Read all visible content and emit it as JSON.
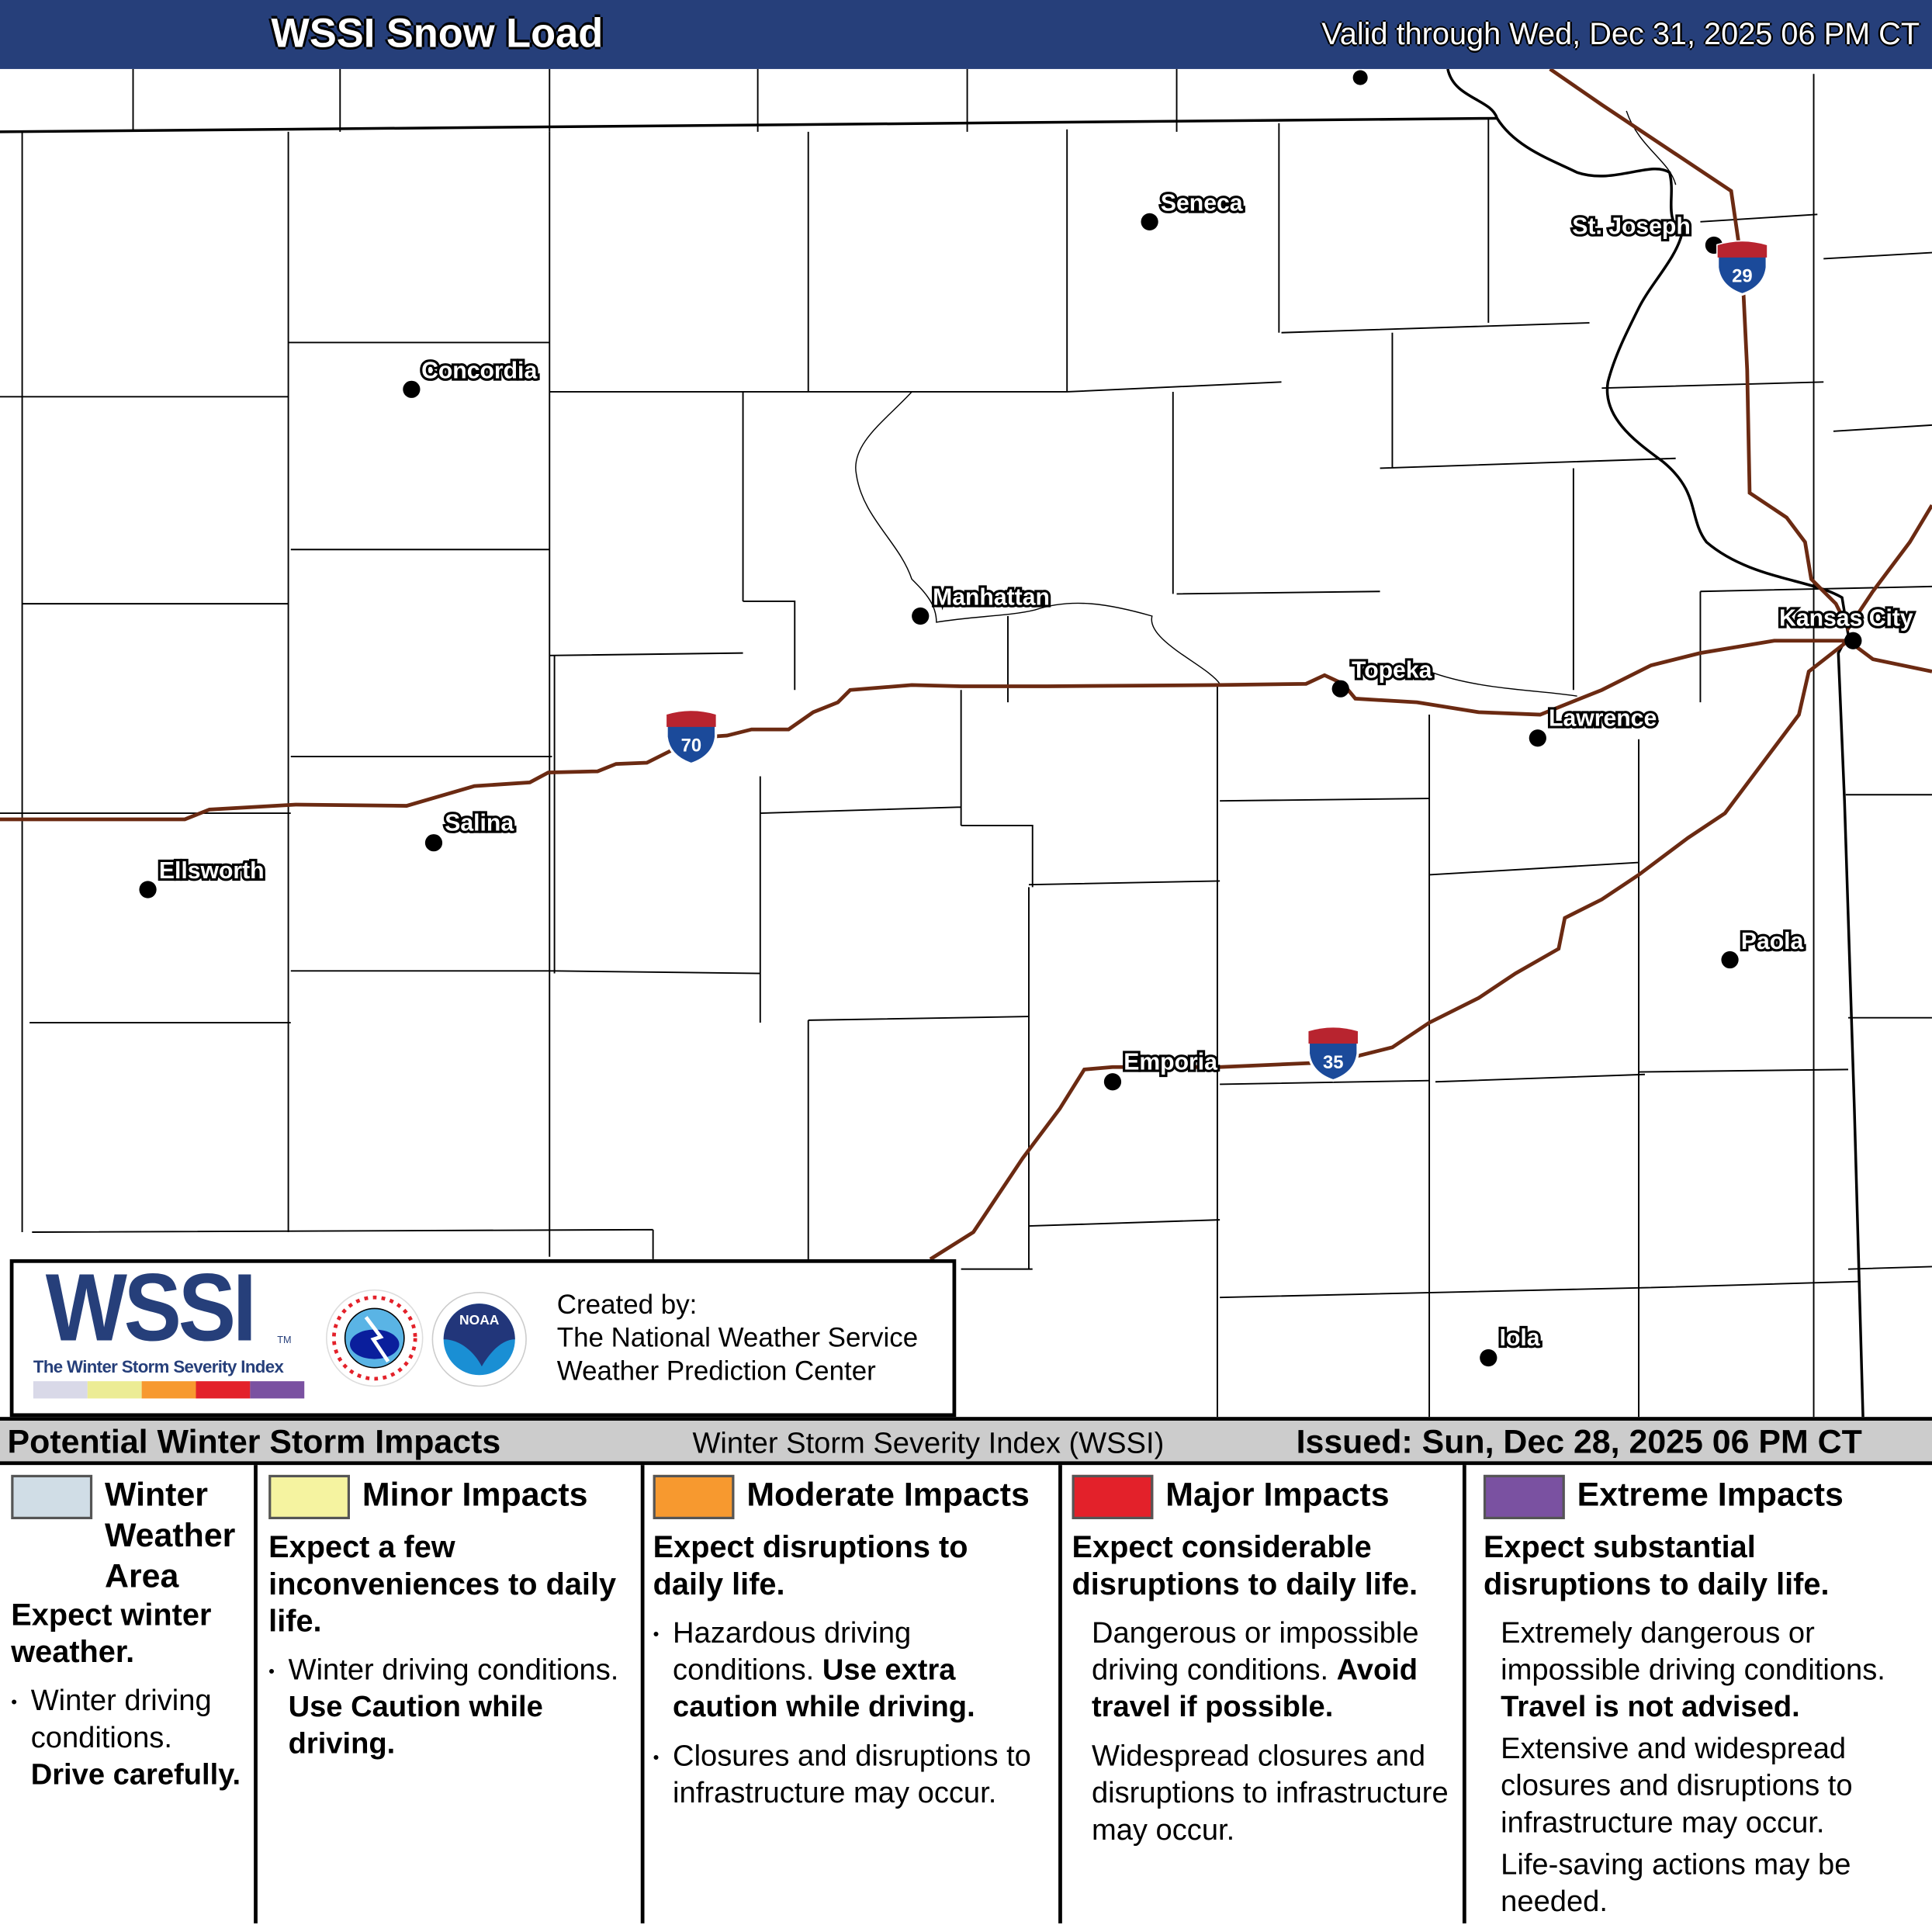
{
  "header": {
    "title": "WSSI Snow Load",
    "valid": "Valid through Wed, Dec 31, 2025 06 PM CT",
    "background": "#263f7a"
  },
  "map": {
    "cities": [
      {
        "name": "Seneca"
      },
      {
        "name": "St. Joseph"
      },
      {
        "name": "Concordia"
      },
      {
        "name": "Manhattan"
      },
      {
        "name": "Kansas City"
      },
      {
        "name": "Topeka"
      },
      {
        "name": "Lawrence"
      },
      {
        "name": "Salina"
      },
      {
        "name": "Ellsworth"
      },
      {
        "name": "Paola"
      },
      {
        "name": "Emporia"
      },
      {
        "name": "Iola"
      }
    ],
    "interstates": [
      {
        "number": "70"
      },
      {
        "number": "35"
      },
      {
        "number": "29"
      }
    ],
    "highway_color": "#6b2a12"
  },
  "logo": {
    "wssi": "WSSI",
    "tm": "TM",
    "subtitle": "The Winter Storm Severity Index",
    "nws_text": "NATIONAL WEATHER SERVICE",
    "noaa_text": "NOAA",
    "created_by": "Created by:",
    "org1": "The National Weather Service",
    "org2": "Weather Prediction Center"
  },
  "bar": {
    "left": "Potential Winter Storm Impacts",
    "middle": "Winter Storm Severity Index (WSSI)",
    "issued": "Issued: Sun, Dec 28, 2025 06 PM CT"
  },
  "legend": {
    "winter": {
      "color": "#d0dde6",
      "title": "Winter Weather Area",
      "lead": "Expect winter weather.",
      "b1": "Winter driving conditions.",
      "b1_bold": "Drive carefully."
    },
    "minor": {
      "color": "#f5f3a0",
      "title": "Minor Impacts",
      "lead": "Expect a few inconveniences to daily life.",
      "b1": "Winter driving conditions.",
      "b1_bold": "Use Caution while driving."
    },
    "moderate": {
      "color": "#f7992f",
      "title": "Moderate Impacts",
      "lead": "Expect disruptions to daily life.",
      "b1": "Hazardous driving conditions.",
      "b1_bold": "Use extra caution while driving.",
      "b2": "Closures and disruptions to infrastructure may occur."
    },
    "major": {
      "color": "#e3212a",
      "title": "Major Impacts",
      "lead": "Expect considerable disruptions to daily life.",
      "p1": "Dangerous or impossible driving conditions.",
      "p1_bold": "Avoid travel if possible.",
      "p2": "Widespread closures and disruptions to infrastructure may occur."
    },
    "extreme": {
      "color": "#7a51a1",
      "title": "Extreme Impacts",
      "lead": "Expect substantial disruptions to daily life.",
      "p1": "Extremely dangerous or impossible driving conditions.",
      "p1_bold": "Travel is not advised.",
      "p2": "Extensive and widespread closures and disruptions to infrastructure may occur.",
      "p3": "Life-saving actions may be needed."
    }
  }
}
